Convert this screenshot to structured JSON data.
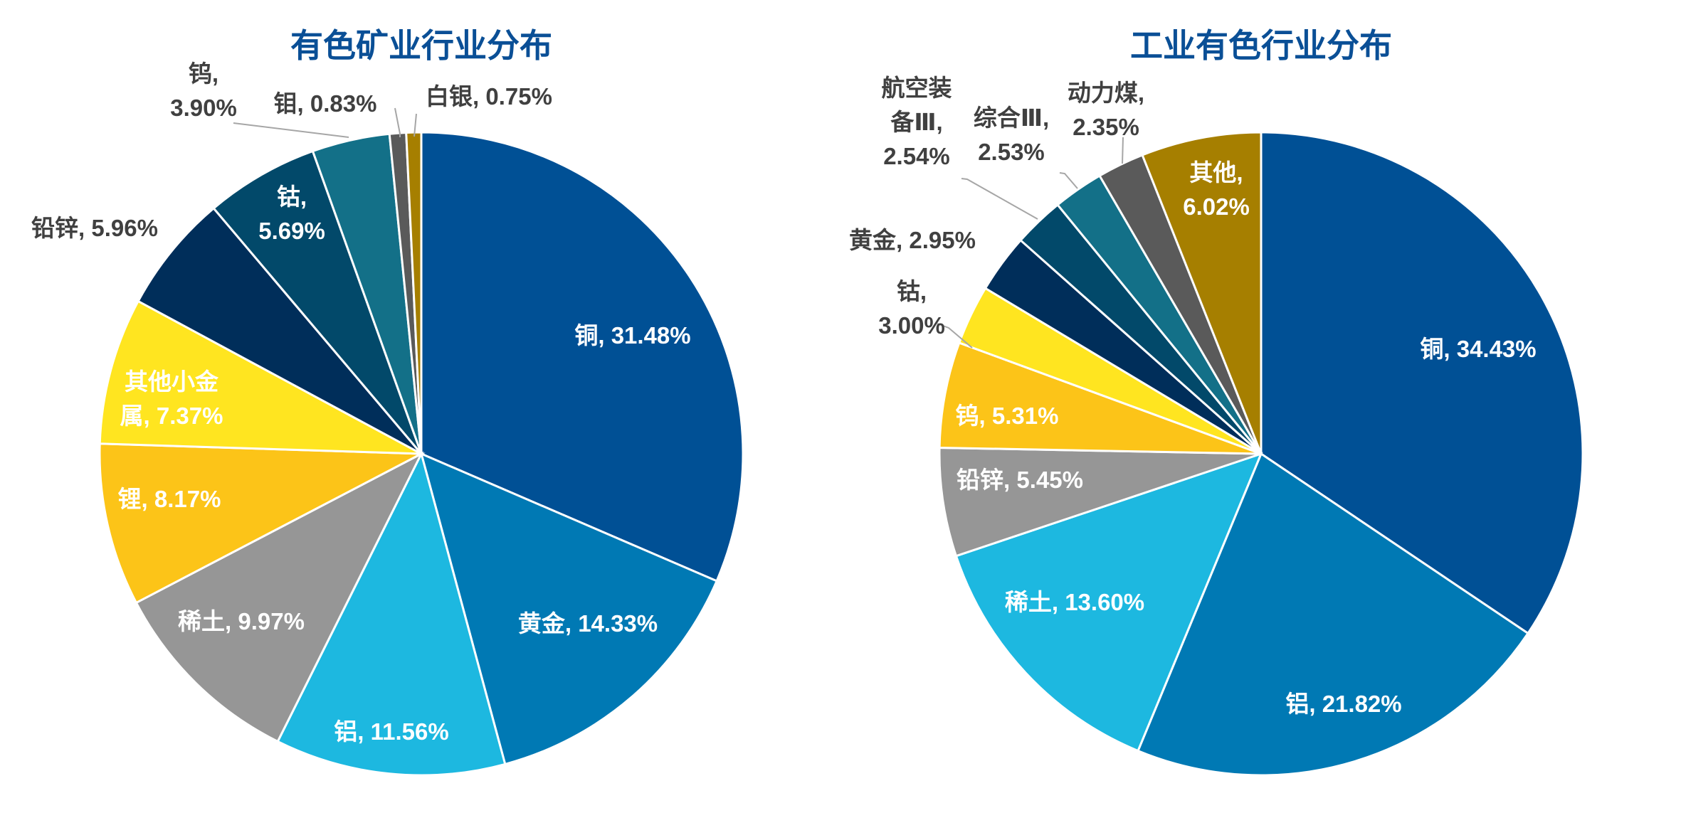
{
  "chart_data": [
    {
      "type": "pie",
      "title": "有色矿业行业分布",
      "start_angle": "12 o'clock, clockwise",
      "slices": [
        {
          "name": "铜",
          "value": 31.48,
          "label": "铜, 31.48%",
          "color": "#005095"
        },
        {
          "name": "黄金",
          "value": 14.33,
          "label": "黄金, 14.33%",
          "color": "#0079b4"
        },
        {
          "name": "铝",
          "value": 11.56,
          "label": "铝, 11.56%",
          "color": "#1db8e0"
        },
        {
          "name": "稀土",
          "value": 9.97,
          "label": "稀土, 9.97%",
          "color": "#969696"
        },
        {
          "name": "锂",
          "value": 8.17,
          "label": "锂, 8.17%",
          "color": "#fcc418"
        },
        {
          "name": "其他小金属",
          "value": 7.37,
          "label": "其他小金\n属, 7.37%",
          "color": "#ffe520"
        },
        {
          "name": "铅锌",
          "value": 5.96,
          "label": "铅锌, 5.96%",
          "color": "#002e5a"
        },
        {
          "name": "钴",
          "value": 5.69,
          "label": "钴,\n5.69%",
          "color": "#02496a"
        },
        {
          "name": "钨",
          "value": 3.9,
          "label": "钨,\n3.90%",
          "color": "#137088"
        },
        {
          "name": "钼",
          "value": 0.83,
          "label": "钼, 0.83%",
          "color": "#5a5a5a"
        },
        {
          "name": "白银",
          "value": 0.75,
          "label": "白银, 0.75%",
          "color": "#a67f00"
        }
      ]
    },
    {
      "type": "pie",
      "title": "工业有色行业分布",
      "start_angle": "12 o'clock, clockwise",
      "slices": [
        {
          "name": "铜",
          "value": 34.43,
          "label": "铜, 34.43%",
          "color": "#005095"
        },
        {
          "name": "铝",
          "value": 21.82,
          "label": "铝, 21.82%",
          "color": "#0079b4"
        },
        {
          "name": "稀土",
          "value": 13.6,
          "label": "稀土, 13.60%",
          "color": "#1db8e0"
        },
        {
          "name": "铅锌",
          "value": 5.45,
          "label": "铅锌, 5.45%",
          "color": "#969696"
        },
        {
          "name": "钨",
          "value": 5.31,
          "label": "钨, 5.31%",
          "color": "#fcc418"
        },
        {
          "name": "钴",
          "value": 3.0,
          "label": "钴,\n3.00%",
          "color": "#ffe520"
        },
        {
          "name": "黄金",
          "value": 2.95,
          "label": "黄金, 2.95%",
          "color": "#002e5a"
        },
        {
          "name": "航空装备Ⅲ",
          "value": 2.54,
          "label": "航空装\n备Ⅲ,\n2.54%",
          "color": "#02496a"
        },
        {
          "name": "综合Ⅲ",
          "value": 2.53,
          "label": "综合Ⅲ,\n2.53%",
          "color": "#137088"
        },
        {
          "name": "动力煤",
          "value": 2.35,
          "label": "动力煤,\n2.35%",
          "color": "#5a5a5a"
        },
        {
          "name": "其他",
          "value": 6.02,
          "label": "其他,\n6.02%",
          "color": "#a67f00"
        }
      ]
    }
  ]
}
